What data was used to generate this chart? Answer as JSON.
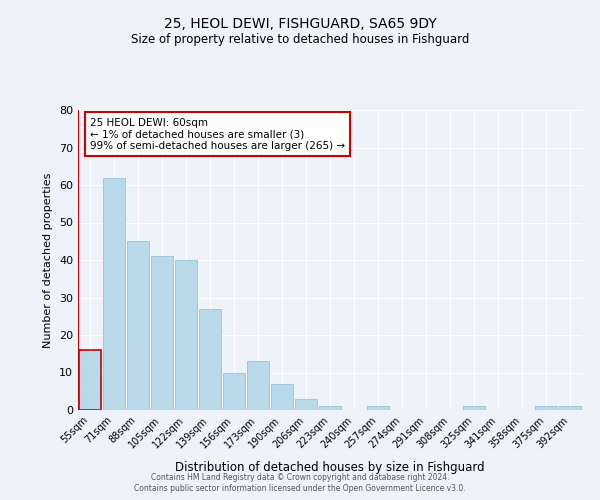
{
  "title": "25, HEOL DEWI, FISHGUARD, SA65 9DY",
  "subtitle": "Size of property relative to detached houses in Fishguard",
  "xlabel": "Distribution of detached houses by size in Fishguard",
  "ylabel": "Number of detached properties",
  "bar_color": "#b8d9e8",
  "highlight_color": "#cc0000",
  "background_color": "#eef2fa",
  "bar_edge_color": "#8bbdd4",
  "categories": [
    "55sqm",
    "71sqm",
    "88sqm",
    "105sqm",
    "122sqm",
    "139sqm",
    "156sqm",
    "173sqm",
    "190sqm",
    "206sqm",
    "223sqm",
    "240sqm",
    "257sqm",
    "274sqm",
    "291sqm",
    "308sqm",
    "325sqm",
    "341sqm",
    "358sqm",
    "375sqm",
    "392sqm"
  ],
  "values": [
    16,
    62,
    45,
    41,
    40,
    27,
    10,
    13,
    7,
    3,
    1,
    0,
    1,
    0,
    0,
    0,
    1,
    0,
    0,
    1,
    1
  ],
  "highlight_index": 0,
  "ylim": [
    0,
    80
  ],
  "yticks": [
    0,
    10,
    20,
    30,
    40,
    50,
    60,
    70,
    80
  ],
  "annotation_text": "25 HEOL DEWI: 60sqm\n← 1% of detached houses are smaller (3)\n99% of semi-detached houses are larger (265) →",
  "footer_line1": "Contains HM Land Registry data © Crown copyright and database right 2024.",
  "footer_line2": "Contains public sector information licensed under the Open Government Licence v3.0."
}
